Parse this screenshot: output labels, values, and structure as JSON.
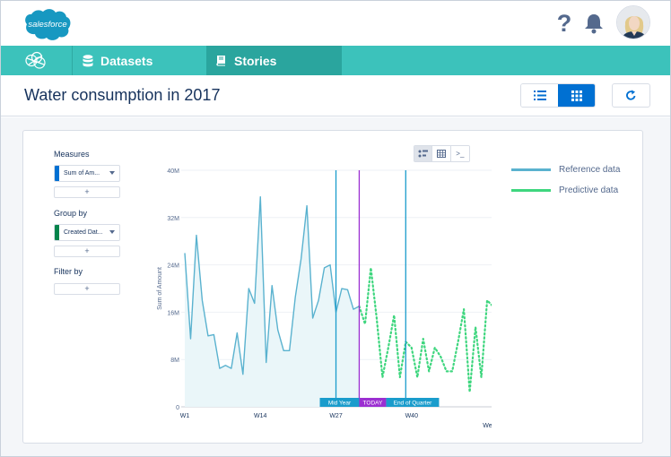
{
  "brand": {
    "logo_text": "salesforce",
    "brand_color": "#1798c1"
  },
  "topbar": {
    "help_icon": "question-mark-icon",
    "bell_icon": "bell-icon",
    "avatar_icon": "user-avatar"
  },
  "nav": {
    "home_icon": "analytics-globe-icon",
    "tabs": [
      {
        "label": "Datasets",
        "icon": "database-icon"
      },
      {
        "label": "Stories",
        "icon": "book-icon"
      }
    ],
    "bg_color": "#3cc2bb"
  },
  "header": {
    "title": "Water consumption in 2017",
    "view_list_icon": "list-icon",
    "view_grid_icon": "grid-icon",
    "refresh_icon": "refresh-icon"
  },
  "panel": {
    "measures_label": "Measures",
    "measure_value": "Sum of Am...",
    "group_label": "Group by",
    "group_value": "Created Dat...",
    "filter_label": "Filter by",
    "add_symbol": "+"
  },
  "tools": {
    "chart_icon": "chart-type-icon",
    "table_icon": "table-icon",
    "query_label": ">_"
  },
  "legend": [
    {
      "label": "Reference data",
      "color": "#5ab2cf"
    },
    {
      "label": "Predictive data",
      "color": "#3ed67e"
    }
  ],
  "chart_data": {
    "type": "line",
    "title": "",
    "xlabel": "Week",
    "ylabel": "Sum of Amount",
    "ylim": [
      0,
      40
    ],
    "y_ticks": [
      "0",
      "8M",
      "16M",
      "24M",
      "32M",
      "40M"
    ],
    "x_ticks": [
      {
        "label": "W1",
        "week": 1
      },
      {
        "label": "W14",
        "week": 14
      },
      {
        "label": "W27",
        "week": 27
      },
      {
        "label": "W40",
        "week": 40
      }
    ],
    "reference_series": {
      "name": "Reference data",
      "weeks": [
        1,
        2,
        3,
        4,
        5,
        6,
        7,
        8,
        9,
        10,
        11,
        12,
        13,
        14,
        15,
        16,
        17,
        18,
        19,
        20,
        21,
        22,
        23,
        24,
        25,
        26,
        27,
        28,
        29,
        30,
        31
      ],
      "values": [
        26,
        11.5,
        29,
        18,
        12,
        12.2,
        6.5,
        7,
        6.5,
        12.5,
        5.5,
        20,
        17.5,
        35.5,
        7.5,
        20.5,
        13,
        9.5,
        9.5,
        18.5,
        25,
        34,
        15,
        18,
        23.5,
        24,
        16,
        20,
        19.8,
        16.5,
        17
      ]
    },
    "predictive_series": {
      "name": "Predictive data",
      "weeks": [
        31,
        32,
        33,
        34,
        35,
        36,
        37,
        38,
        39,
        40,
        41,
        42,
        43,
        44,
        45,
        46,
        47,
        48,
        49,
        50,
        51,
        52,
        53,
        54,
        55
      ],
      "values": [
        17,
        14,
        23.5,
        15,
        5,
        10,
        15.5,
        5,
        11,
        10,
        5,
        11.5,
        6,
        10,
        8.5,
        6,
        6,
        11,
        16.5,
        2.5,
        13.5,
        5,
        18,
        17,
        7.5
      ]
    },
    "markers": [
      {
        "label": "Mid Year",
        "week": 27,
        "color": "#1a9ccc"
      },
      {
        "label": "TODAY",
        "week": 31,
        "color": "#9b2fd1"
      },
      {
        "label": "End of Quarter",
        "week": 39,
        "color": "#1a9ccc"
      }
    ]
  }
}
